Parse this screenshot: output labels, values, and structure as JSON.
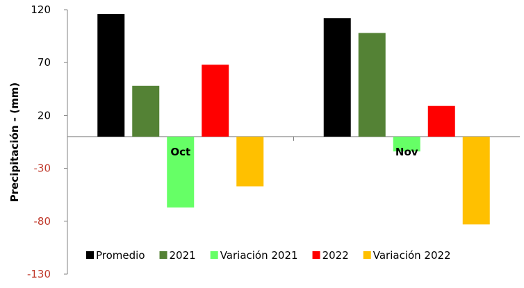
{
  "chart_data": {
    "type": "bar",
    "categories": [
      "Oct",
      "Nov"
    ],
    "series": [
      {
        "name": "Promedio",
        "color": "#000000",
        "values": [
          116,
          112
        ]
      },
      {
        "name": "2021",
        "color": "#548235",
        "values": [
          48,
          98
        ]
      },
      {
        "name": "Variación 2021",
        "color": "#66FF66",
        "values": [
          -67,
          -14
        ]
      },
      {
        "name": "2022",
        "color": "#FF0000",
        "values": [
          68,
          29
        ]
      },
      {
        "name": "Variación 2022",
        "color": "#FFC000",
        "values": [
          -47,
          -83
        ]
      }
    ],
    "ylabel": "Precipitación  - (mm)",
    "ylim": [
      -130,
      120
    ],
    "yticks": [
      "120",
      "70",
      "20",
      "-30",
      "-80",
      "-130"
    ],
    "ytick_values": [
      120,
      70,
      20,
      -30,
      -80,
      -130
    ],
    "legend_position": "bottom",
    "grid": false,
    "colors": {
      "negative_tick": "#C0392B",
      "positive_tick": "#000000",
      "axis": "#808080"
    }
  }
}
